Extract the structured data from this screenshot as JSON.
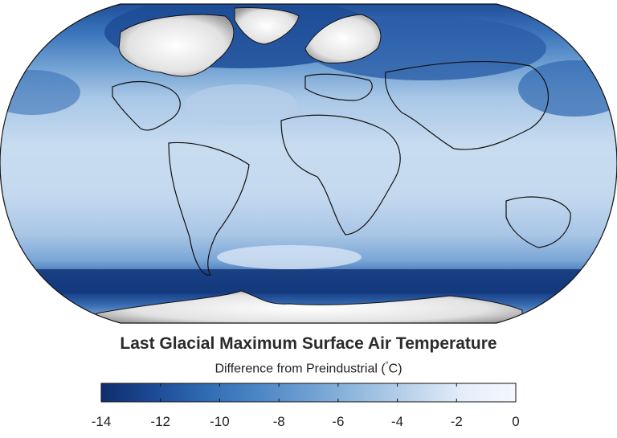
{
  "title": "Last Glacial Maximum Surface Air Temperature",
  "subtitle_text": "Difference from Preindustrial (",
  "subtitle_degree": "°",
  "subtitle_unit": "C)",
  "colorbar": {
    "tick_labels": [
      "-14",
      "-12",
      "-10",
      "-8",
      "-6",
      "-4",
      "-2",
      "0"
    ],
    "range": [
      -14,
      0
    ],
    "colors": [
      "#0f2d6e",
      "#1c4a94",
      "#2f6bb1",
      "#4a86c5",
      "#6e9fd2",
      "#95badf",
      "#bdd4ec",
      "#e4eefa",
      "#f5f8fd"
    ]
  },
  "map": {
    "projection": "Robinson",
    "ice_color": "#e9e9e9",
    "coast_color": "#111111"
  }
}
